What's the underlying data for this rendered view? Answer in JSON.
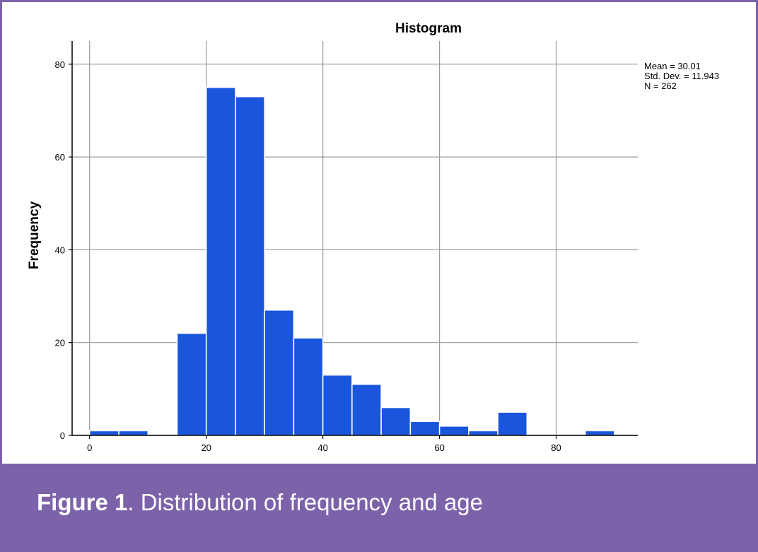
{
  "colors": {
    "bar_fill": "#1a56db",
    "bar_edge": "#ffffff",
    "grid": "#9b9b9b",
    "axis": "#000000",
    "frame": "#7b62a9"
  },
  "chart_data": {
    "type": "bar",
    "title": "Histogram",
    "xlabel": "",
    "ylabel": "Frequency",
    "bin_width": 5,
    "bins": [
      {
        "start": 0,
        "end": 5,
        "count": 1
      },
      {
        "start": 5,
        "end": 10,
        "count": 1
      },
      {
        "start": 10,
        "end": 15,
        "count": 0
      },
      {
        "start": 15,
        "end": 20,
        "count": 22
      },
      {
        "start": 20,
        "end": 25,
        "count": 75
      },
      {
        "start": 25,
        "end": 30,
        "count": 73
      },
      {
        "start": 30,
        "end": 35,
        "count": 27
      },
      {
        "start": 35,
        "end": 40,
        "count": 21
      },
      {
        "start": 40,
        "end": 45,
        "count": 13
      },
      {
        "start": 45,
        "end": 50,
        "count": 11
      },
      {
        "start": 50,
        "end": 55,
        "count": 6
      },
      {
        "start": 55,
        "end": 60,
        "count": 3
      },
      {
        "start": 60,
        "end": 65,
        "count": 2
      },
      {
        "start": 65,
        "end": 70,
        "count": 1
      },
      {
        "start": 70,
        "end": 75,
        "count": 5
      },
      {
        "start": 75,
        "end": 80,
        "count": 0
      },
      {
        "start": 80,
        "end": 85,
        "count": 0
      },
      {
        "start": 85,
        "end": 90,
        "count": 1
      }
    ],
    "xlim": [
      -3,
      94
    ],
    "ylim": [
      0,
      85
    ],
    "x_ticks": [
      "0",
      "20",
      "40",
      "60",
      "80"
    ],
    "y_ticks": [
      "0",
      "20",
      "40",
      "60",
      "80"
    ],
    "grid": true,
    "stats": [
      "Mean = 30.01",
      "Std. Dev. = 11.943",
      "N = 262"
    ]
  },
  "caption": {
    "label": "Figure 1",
    "text": ". Distribution of frequency and age"
  }
}
